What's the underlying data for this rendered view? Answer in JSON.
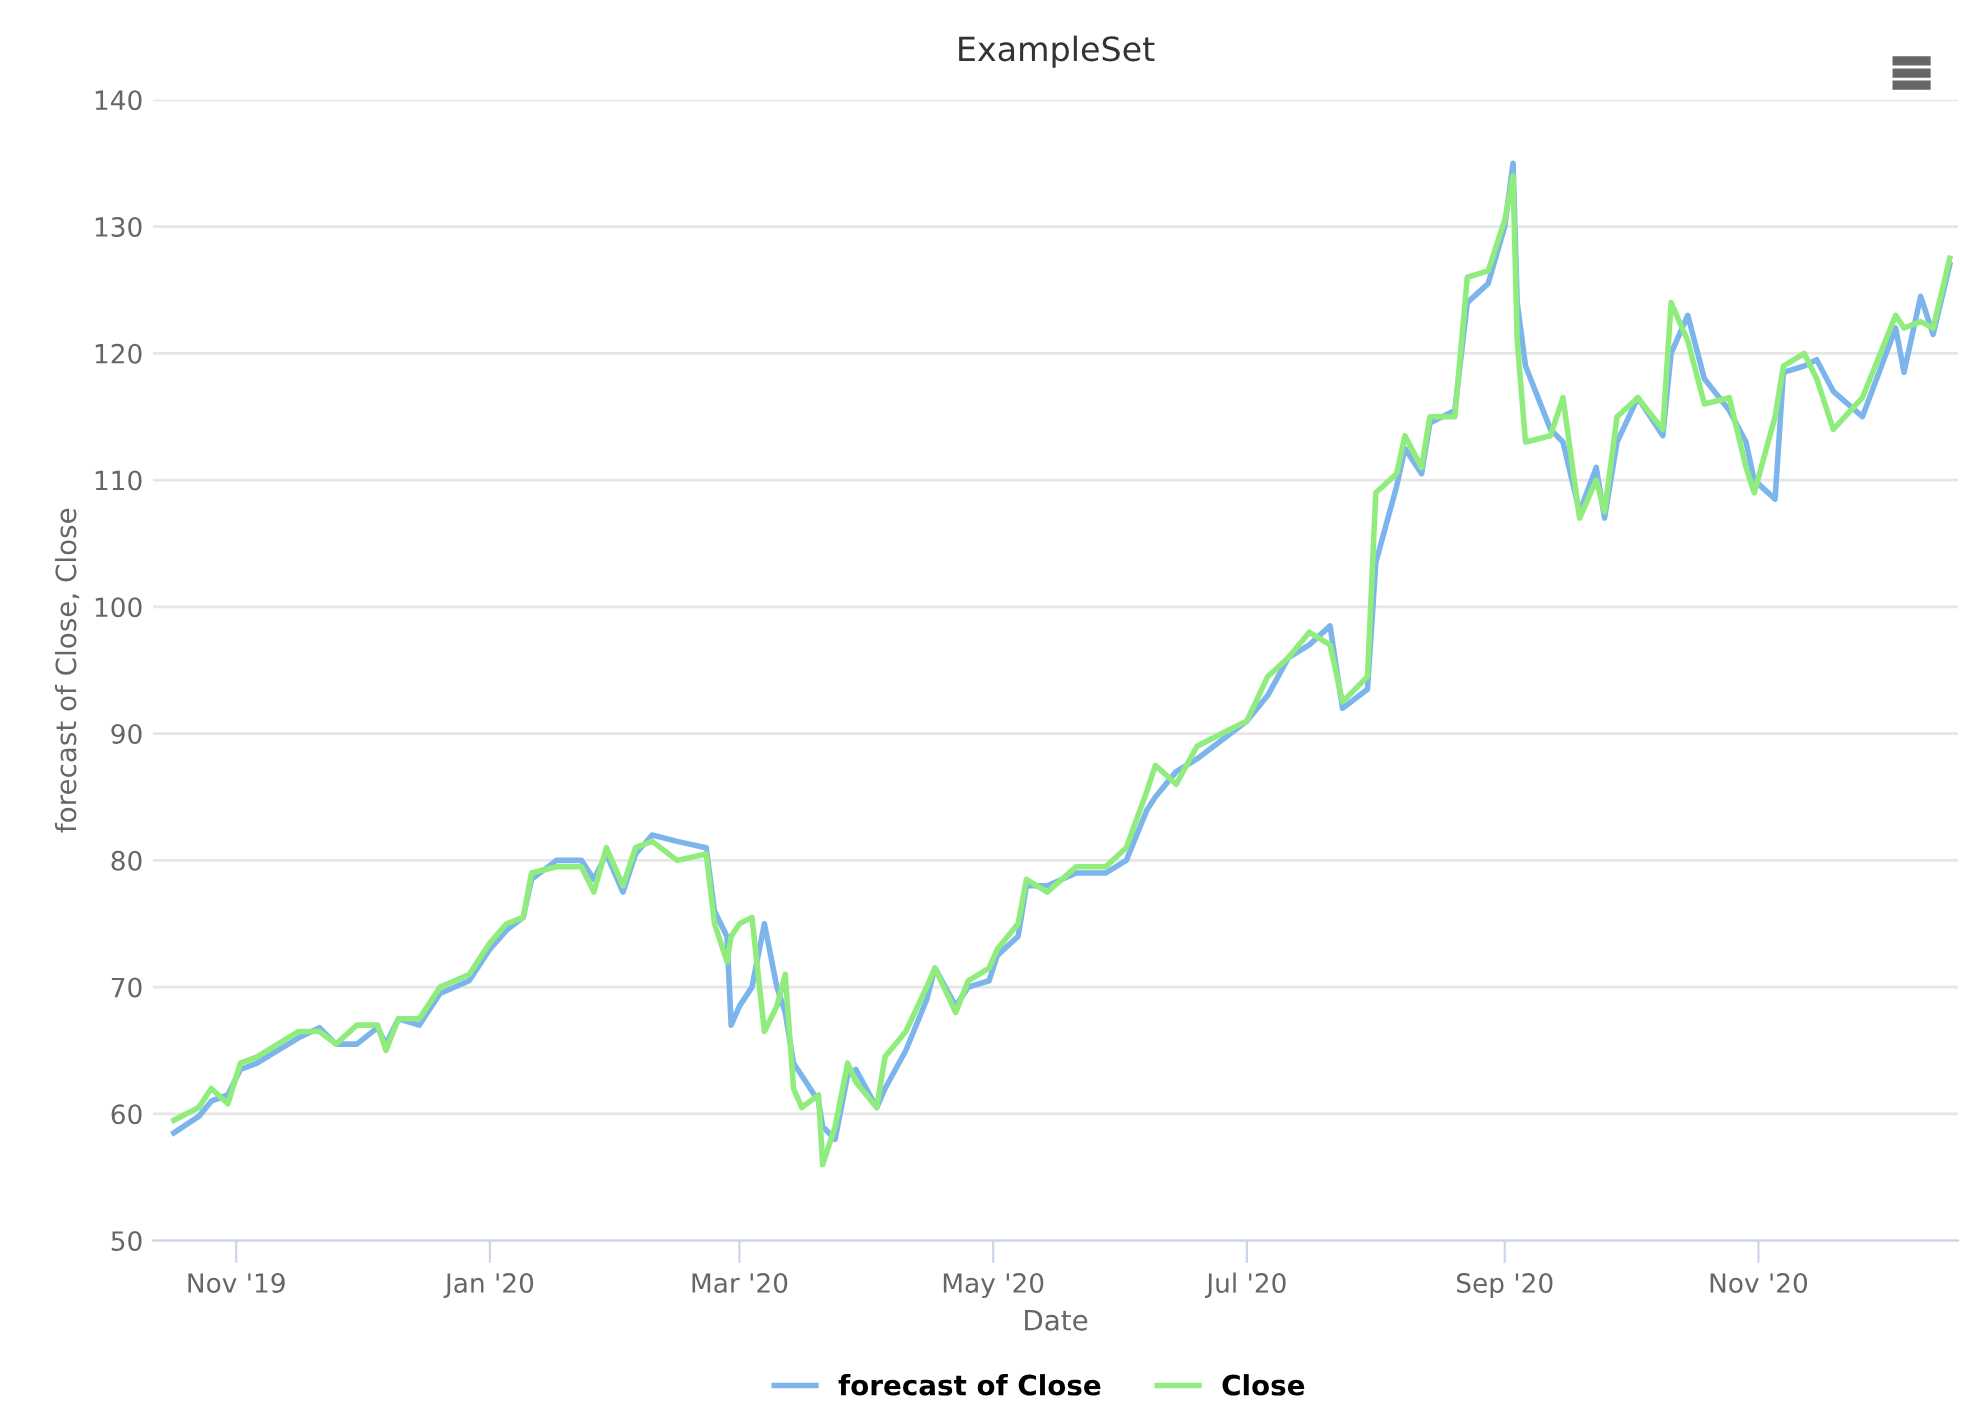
{
  "chart_data": {
    "type": "line",
    "title": "ExampleSet",
    "xlabel": "Date",
    "ylabel": "forecast of Close, Close",
    "x": [
      "2019-10-17",
      "2019-10-23",
      "2019-10-26",
      "2019-10-30",
      "2019-11-02",
      "2019-11-06",
      "2019-11-11",
      "2019-11-16",
      "2019-11-21",
      "2019-11-25",
      "2019-11-30",
      "2019-12-05",
      "2019-12-07",
      "2019-12-10",
      "2019-12-15",
      "2019-12-20",
      "2019-12-27",
      "2020-01-01",
      "2020-01-05",
      "2020-01-09",
      "2020-01-11",
      "2020-01-17",
      "2020-01-23",
      "2020-01-26",
      "2020-01-29",
      "2020-02-02",
      "2020-02-05",
      "2020-02-09",
      "2020-02-15",
      "2020-02-22",
      "2020-02-24",
      "2020-02-27",
      "2020-02-28",
      "2020-03-01",
      "2020-03-04",
      "2020-03-07",
      "2020-03-10",
      "2020-03-12",
      "2020-03-14",
      "2020-03-16",
      "2020-03-20",
      "2020-03-21",
      "2020-03-24",
      "2020-03-27",
      "2020-03-29",
      "2020-04-03",
      "2020-04-05",
      "2020-04-10",
      "2020-04-15",
      "2020-04-17",
      "2020-04-22",
      "2020-04-25",
      "2020-04-30",
      "2020-05-02",
      "2020-05-07",
      "2020-05-09",
      "2020-05-14",
      "2020-05-21",
      "2020-05-28",
      "2020-06-02",
      "2020-06-07",
      "2020-06-09",
      "2020-06-14",
      "2020-06-19",
      "2020-06-25",
      "2020-07-01",
      "2020-07-06",
      "2020-07-11",
      "2020-07-16",
      "2020-07-21",
      "2020-07-24",
      "2020-07-30",
      "2020-08-01",
      "2020-08-06",
      "2020-08-08",
      "2020-08-12",
      "2020-08-14",
      "2020-08-20",
      "2020-08-23",
      "2020-08-28",
      "2020-09-01",
      "2020-09-03",
      "2020-09-04",
      "2020-09-06",
      "2020-09-12",
      "2020-09-15",
      "2020-09-19",
      "2020-09-23",
      "2020-09-25",
      "2020-09-28",
      "2020-10-03",
      "2020-10-09",
      "2020-10-11",
      "2020-10-15",
      "2020-10-19",
      "2020-10-25",
      "2020-10-29",
      "2020-10-31",
      "2020-11-05",
      "2020-11-07",
      "2020-11-12",
      "2020-11-15",
      "2020-11-19",
      "2020-11-26",
      "2020-12-04",
      "2020-12-06",
      "2020-12-10",
      "2020-12-13",
      "2020-12-17"
    ],
    "series": [
      {
        "name": "forecast of Close",
        "color": "#7cb5ec",
        "values": [
          58.5,
          59.8,
          61,
          61.5,
          63.5,
          64,
          65,
          66,
          66.8,
          65.5,
          65.5,
          66.8,
          65.5,
          67.5,
          67,
          69.5,
          70.5,
          73,
          74.5,
          75.5,
          78.5,
          80,
          80,
          78.5,
          80.5,
          77.5,
          80.5,
          82,
          81.5,
          81,
          76,
          74,
          67,
          68.5,
          70,
          75,
          70,
          68,
          64,
          63,
          61,
          59,
          58,
          63,
          63.5,
          60.5,
          62,
          65,
          69,
          71.5,
          68.5,
          70,
          70.5,
          72.5,
          74,
          78,
          78,
          79,
          79,
          80,
          84,
          85,
          87,
          88,
          89.5,
          91,
          93,
          96,
          97,
          98.5,
          92,
          93.5,
          103.5,
          109.5,
          112.5,
          110.5,
          114.5,
          115.5,
          124,
          125.5,
          130,
          135,
          124,
          119,
          114,
          113,
          107.5,
          111,
          107,
          113,
          116.5,
          113.5,
          120,
          123,
          118,
          115.5,
          113,
          110,
          108.5,
          118.5,
          119,
          119.5,
          117,
          115,
          122,
          118.5,
          124.5,
          121.5,
          127
        ]
      },
      {
        "name": "Close",
        "color": "#90ed7d",
        "values": [
          59.5,
          60.5,
          62,
          60.8,
          64,
          64.5,
          65.5,
          66.5,
          66.5,
          65.5,
          67,
          67,
          65,
          67.5,
          67.5,
          70,
          71,
          73.5,
          75,
          75.5,
          79,
          79.5,
          79.5,
          77.5,
          81,
          78,
          81,
          81.5,
          80,
          80.5,
          75,
          72,
          74,
          75,
          75.5,
          66.5,
          68.5,
          71,
          62,
          60.5,
          61.5,
          56,
          59,
          64,
          62.5,
          60.5,
          64.5,
          66.5,
          70,
          71.5,
          68,
          70.5,
          71.5,
          73,
          75,
          78.5,
          77.5,
          79.5,
          79.5,
          81,
          85.5,
          87.5,
          86,
          89,
          90,
          91,
          94.5,
          96,
          98,
          97,
          92.5,
          94.5,
          109,
          110.5,
          113.5,
          111,
          115,
          115,
          126,
          126.5,
          130.5,
          134,
          121,
          113,
          113.5,
          116.5,
          107,
          110,
          107.5,
          115,
          116.5,
          114,
          124,
          121,
          116,
          116.5,
          111,
          109,
          115,
          119,
          120,
          118,
          114,
          116.5,
          123,
          122,
          122.5,
          122,
          127.5
        ]
      }
    ],
    "xlim": [
      "2019-10-12",
      "2020-12-19"
    ],
    "xticks": [
      {
        "value": "2019-11-01",
        "label": "Nov '19"
      },
      {
        "value": "2020-01-01",
        "label": "Jan '20"
      },
      {
        "value": "2020-03-01",
        "label": "Mar '20"
      },
      {
        "value": "2020-05-01",
        "label": "May '20"
      },
      {
        "value": "2020-07-01",
        "label": "Jul '20"
      },
      {
        "value": "2020-09-01",
        "label": "Sep '20"
      },
      {
        "value": "2020-11-01",
        "label": "Nov '20"
      }
    ],
    "ylim": [
      50,
      140
    ],
    "yticks": [
      50,
      60,
      70,
      80,
      90,
      100,
      110,
      120,
      130,
      140
    ],
    "grid": "y",
    "legend": "bottom",
    "marker": "none",
    "line_style": "solid"
  }
}
